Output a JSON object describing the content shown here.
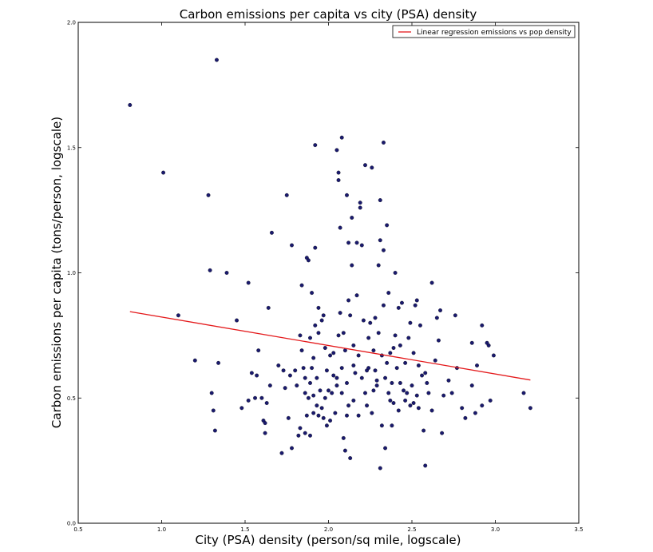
{
  "chart_data": {
    "type": "scatter",
    "title": "Carbon emissions per capita vs city (PSA) density",
    "xlabel": "City (PSA) density (person/sq mile, logscale)",
    "ylabel": "Carbon emissions per capita (tons/person, logscale)",
    "xlim": [
      0.5,
      3.5
    ],
    "ylim": [
      0.0,
      2.0
    ],
    "xticks": [
      "0.5",
      "1.0",
      "1.5",
      "2.0",
      "2.5",
      "3.0",
      "3.5"
    ],
    "yticks": [
      "0.0",
      "0.5",
      "1.0",
      "1.5",
      "2.0"
    ],
    "grid": false,
    "legend": {
      "position": "top-right",
      "entries": [
        "Linear regression emissions vs pop density"
      ]
    },
    "colors": {
      "points": "#1a1a6e",
      "regression": "#e41a1c"
    },
    "regression": {
      "x": [
        0.81,
        3.21
      ],
      "y": [
        0.845,
        0.572
      ]
    },
    "points": [
      [
        0.81,
        1.67
      ],
      [
        1.01,
        1.4
      ],
      [
        1.33,
        1.85
      ],
      [
        1.28,
        1.31
      ],
      [
        1.29,
        1.01
      ],
      [
        1.1,
        0.83
      ],
      [
        1.2,
        0.65
      ],
      [
        1.3,
        0.52
      ],
      [
        1.31,
        0.45
      ],
      [
        1.32,
        0.37
      ],
      [
        1.34,
        0.64
      ],
      [
        1.39,
        1.0
      ],
      [
        1.45,
        0.81
      ],
      [
        1.48,
        0.46
      ],
      [
        1.52,
        0.96
      ],
      [
        1.52,
        0.49
      ],
      [
        1.54,
        0.6
      ],
      [
        1.56,
        0.5
      ],
      [
        1.57,
        0.59
      ],
      [
        1.58,
        0.69
      ],
      [
        1.6,
        0.5
      ],
      [
        1.61,
        0.41
      ],
      [
        1.62,
        0.36
      ],
      [
        1.62,
        0.4
      ],
      [
        1.63,
        0.48
      ],
      [
        1.64,
        0.86
      ],
      [
        1.66,
        1.16
      ],
      [
        1.65,
        0.55
      ],
      [
        1.7,
        0.63
      ],
      [
        1.72,
        0.28
      ],
      [
        1.73,
        0.61
      ],
      [
        1.74,
        0.54
      ],
      [
        1.75,
        1.31
      ],
      [
        1.76,
        0.42
      ],
      [
        1.77,
        0.59
      ],
      [
        1.78,
        0.3
      ],
      [
        1.78,
        1.11
      ],
      [
        1.8,
        0.61
      ],
      [
        1.81,
        0.55
      ],
      [
        1.82,
        0.35
      ],
      [
        1.83,
        0.38
      ],
      [
        1.83,
        0.75
      ],
      [
        1.84,
        0.69
      ],
      [
        1.84,
        0.95
      ],
      [
        1.85,
        0.62
      ],
      [
        1.86,
        0.36
      ],
      [
        1.86,
        0.52
      ],
      [
        1.86,
        0.58
      ],
      [
        1.87,
        0.43
      ],
      [
        1.87,
        1.06
      ],
      [
        1.88,
        1.05
      ],
      [
        1.88,
        0.5
      ],
      [
        1.89,
        0.35
      ],
      [
        1.89,
        0.74
      ],
      [
        1.89,
        0.56
      ],
      [
        1.9,
        0.92
      ],
      [
        1.9,
        0.62
      ],
      [
        1.91,
        0.44
      ],
      [
        1.91,
        0.66
      ],
      [
        1.91,
        0.51
      ],
      [
        1.92,
        1.51
      ],
      [
        1.92,
        1.1
      ],
      [
        1.92,
        0.79
      ],
      [
        1.93,
        0.47
      ],
      [
        1.93,
        0.58
      ],
      [
        1.94,
        0.43
      ],
      [
        1.94,
        0.76
      ],
      [
        1.94,
        0.86
      ],
      [
        1.95,
        0.53
      ],
      [
        1.96,
        0.81
      ],
      [
        1.96,
        0.46
      ],
      [
        1.97,
        0.83
      ],
      [
        1.97,
        0.42
      ],
      [
        1.98,
        0.5
      ],
      [
        1.98,
        0.7
      ],
      [
        1.99,
        0.39
      ],
      [
        1.99,
        0.61
      ],
      [
        2.0,
        0.53
      ],
      [
        2.01,
        0.41
      ],
      [
        2.01,
        0.67
      ],
      [
        2.02,
        0.52
      ],
      [
        2.03,
        0.59
      ],
      [
        2.03,
        0.68
      ],
      [
        2.04,
        0.44
      ],
      [
        2.05,
        0.55
      ],
      [
        2.05,
        0.58
      ],
      [
        2.05,
        1.49
      ],
      [
        2.06,
        0.75
      ],
      [
        2.06,
        1.37
      ],
      [
        2.06,
        1.4
      ],
      [
        2.07,
        1.18
      ],
      [
        2.07,
        0.84
      ],
      [
        2.08,
        1.54
      ],
      [
        2.08,
        0.52
      ],
      [
        2.08,
        0.62
      ],
      [
        2.09,
        0.34
      ],
      [
        2.09,
        0.76
      ],
      [
        2.1,
        0.29
      ],
      [
        2.1,
        0.69
      ],
      [
        2.11,
        0.43
      ],
      [
        2.11,
        0.56
      ],
      [
        2.11,
        1.31
      ],
      [
        2.12,
        1.12
      ],
      [
        2.12,
        0.47
      ],
      [
        2.12,
        0.89
      ],
      [
        2.13,
        0.26
      ],
      [
        2.13,
        0.83
      ],
      [
        2.14,
        1.03
      ],
      [
        2.14,
        1.22
      ],
      [
        2.15,
        0.49
      ],
      [
        2.15,
        0.63
      ],
      [
        2.15,
        0.71
      ],
      [
        2.16,
        0.6
      ],
      [
        2.17,
        1.12
      ],
      [
        2.17,
        0.91
      ],
      [
        2.18,
        0.67
      ],
      [
        2.18,
        0.43
      ],
      [
        2.19,
        1.28
      ],
      [
        2.19,
        1.26
      ],
      [
        2.2,
        0.58
      ],
      [
        2.2,
        1.11
      ],
      [
        2.21,
        0.81
      ],
      [
        2.22,
        0.52
      ],
      [
        2.22,
        1.43
      ],
      [
        2.23,
        0.47
      ],
      [
        2.23,
        0.61
      ],
      [
        2.24,
        0.74
      ],
      [
        2.24,
        0.62
      ],
      [
        2.25,
        0.8
      ],
      [
        2.26,
        0.44
      ],
      [
        2.26,
        1.42
      ],
      [
        2.27,
        0.53
      ],
      [
        2.27,
        0.69
      ],
      [
        2.28,
        0.82
      ],
      [
        2.28,
        0.61
      ],
      [
        2.29,
        0.55
      ],
      [
        2.29,
        0.57
      ],
      [
        2.3,
        1.03
      ],
      [
        2.3,
        0.76
      ],
      [
        2.31,
        0.22
      ],
      [
        2.31,
        1.13
      ],
      [
        2.31,
        1.29
      ],
      [
        2.32,
        0.39
      ],
      [
        2.32,
        0.67
      ],
      [
        2.33,
        1.52
      ],
      [
        2.33,
        1.09
      ],
      [
        2.33,
        0.87
      ],
      [
        2.34,
        0.3
      ],
      [
        2.34,
        0.58
      ],
      [
        2.35,
        1.19
      ],
      [
        2.35,
        0.64
      ],
      [
        2.36,
        0.52
      ],
      [
        2.36,
        0.92
      ],
      [
        2.37,
        0.68
      ],
      [
        2.37,
        0.49
      ],
      [
        2.38,
        0.39
      ],
      [
        2.38,
        0.56
      ],
      [
        2.39,
        0.7
      ],
      [
        2.39,
        0.48
      ],
      [
        2.4,
        1.0
      ],
      [
        2.4,
        0.75
      ],
      [
        2.41,
        0.62
      ],
      [
        2.42,
        0.45
      ],
      [
        2.42,
        0.86
      ],
      [
        2.43,
        0.71
      ],
      [
        2.43,
        0.56
      ],
      [
        2.44,
        0.88
      ],
      [
        2.45,
        0.53
      ],
      [
        2.46,
        0.64
      ],
      [
        2.46,
        0.49
      ],
      [
        2.47,
        0.52
      ],
      [
        2.48,
        0.74
      ],
      [
        2.49,
        0.8
      ],
      [
        2.49,
        0.47
      ],
      [
        2.5,
        0.55
      ],
      [
        2.51,
        0.68
      ],
      [
        2.51,
        0.48
      ],
      [
        2.52,
        0.87
      ],
      [
        2.53,
        0.89
      ],
      [
        2.53,
        0.51
      ],
      [
        2.54,
        0.63
      ],
      [
        2.54,
        0.46
      ],
      [
        2.55,
        0.79
      ],
      [
        2.56,
        0.59
      ],
      [
        2.57,
        0.37
      ],
      [
        2.58,
        0.6
      ],
      [
        2.58,
        0.23
      ],
      [
        2.59,
        0.56
      ],
      [
        2.6,
        0.52
      ],
      [
        2.62,
        0.96
      ],
      [
        2.62,
        0.45
      ],
      [
        2.64,
        0.65
      ],
      [
        2.65,
        0.82
      ],
      [
        2.66,
        0.73
      ],
      [
        2.67,
        0.85
      ],
      [
        2.68,
        0.36
      ],
      [
        2.69,
        0.51
      ],
      [
        2.72,
        0.57
      ],
      [
        2.74,
        0.52
      ],
      [
        2.76,
        0.83
      ],
      [
        2.77,
        0.62
      ],
      [
        2.8,
        0.46
      ],
      [
        2.82,
        0.42
      ],
      [
        2.86,
        0.72
      ],
      [
        2.86,
        0.55
      ],
      [
        2.88,
        0.44
      ],
      [
        2.89,
        0.63
      ],
      [
        2.92,
        0.79
      ],
      [
        2.92,
        0.47
      ],
      [
        2.95,
        0.72
      ],
      [
        2.96,
        0.71
      ],
      [
        2.97,
        0.49
      ],
      [
        2.99,
        0.67
      ],
      [
        3.17,
        0.52
      ],
      [
        3.21,
        0.46
      ]
    ]
  }
}
